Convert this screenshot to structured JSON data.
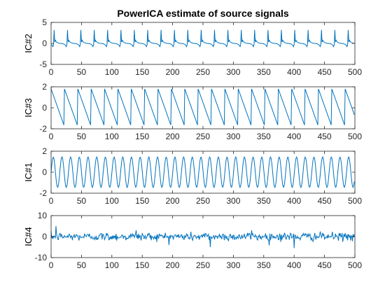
{
  "figure": {
    "title": "PowerICA estimate of source signals"
  },
  "colors": {
    "line": "#0072bd",
    "axis": "#262626",
    "background": "#ffffff"
  },
  "chart_data": [
    {
      "type": "line",
      "ylabel": "IC#2",
      "xlim": [
        0,
        500
      ],
      "ylim": [
        -5,
        5
      ],
      "xticks": [
        0,
        50,
        100,
        150,
        200,
        250,
        300,
        350,
        400,
        450,
        500
      ],
      "yticks": [
        -5,
        0,
        5
      ],
      "grid": false,
      "series": [
        {
          "waveform": "spiky-periodic",
          "period": 22,
          "amplitude": 3.2,
          "samples": 500
        }
      ]
    },
    {
      "type": "line",
      "ylabel": "IC#3",
      "xlim": [
        0,
        500
      ],
      "ylim": [
        -2,
        2
      ],
      "xticks": [
        0,
        50,
        100,
        150,
        200,
        250,
        300,
        350,
        400,
        450,
        500
      ],
      "yticks": [
        -2,
        0,
        2
      ],
      "grid": false,
      "series": [
        {
          "waveform": "sawtooth-falling",
          "period": 22,
          "amplitude": 1.8,
          "samples": 500
        }
      ]
    },
    {
      "type": "line",
      "ylabel": "IC#1",
      "xlim": [
        0,
        500
      ],
      "ylim": [
        -2,
        2
      ],
      "xticks": [
        0,
        50,
        100,
        150,
        200,
        250,
        300,
        350,
        400,
        450,
        500
      ],
      "yticks": [
        -2,
        0,
        2
      ],
      "grid": false,
      "series": [
        {
          "waveform": "sine",
          "period": 14.3,
          "amplitude": 1.45,
          "samples": 500
        }
      ]
    },
    {
      "type": "line",
      "ylabel": "IC#4",
      "xlim": [
        0,
        500
      ],
      "ylim": [
        -10,
        10
      ],
      "xticks": [
        0,
        50,
        100,
        150,
        200,
        250,
        300,
        350,
        400,
        450,
        500
      ],
      "yticks": [
        -10,
        0,
        10
      ],
      "grid": false,
      "series": [
        {
          "waveform": "noise",
          "std": 1.0,
          "samples": 500,
          "spikes": [
            [
              8,
              5
            ],
            [
              262,
              -5
            ],
            [
              400,
              -5.5
            ],
            [
              330,
              3
            ],
            [
              140,
              3
            ]
          ]
        }
      ]
    }
  ]
}
